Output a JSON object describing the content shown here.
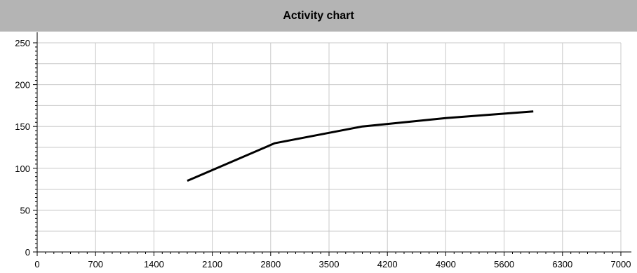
{
  "chart_data": {
    "type": "line",
    "title": "Activity chart",
    "xlabel": "",
    "ylabel": "",
    "xlim": [
      0,
      7000
    ],
    "ylim": [
      0,
      250
    ],
    "x_ticks": [
      0,
      700,
      1400,
      2100,
      2800,
      3500,
      4200,
      4900,
      5600,
      6300,
      7000
    ],
    "y_ticks": [
      0,
      50,
      100,
      150,
      200,
      250
    ],
    "grid": true,
    "legend": "none",
    "series": [
      {
        "color": "#000000",
        "x": [
          1800,
          2850,
          3900,
          4900,
          5950
        ],
        "y": [
          85,
          130,
          150,
          160,
          168
        ]
      }
    ]
  }
}
